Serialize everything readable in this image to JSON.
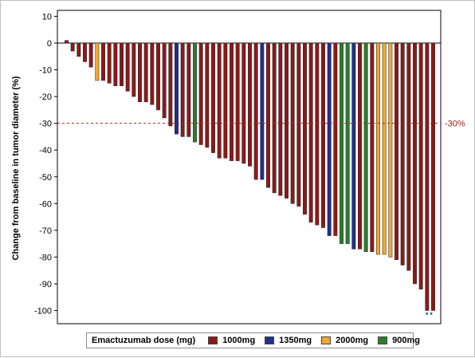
{
  "chart_data": {
    "type": "bar",
    "title": "",
    "xlabel": "",
    "ylabel": "Change from baseline in tumor diameter (%)",
    "ylim": [
      -105,
      12
    ],
    "yticks": [
      10,
      0,
      -10,
      -20,
      -30,
      -40,
      -50,
      -60,
      -70,
      -80,
      -90,
      -100
    ],
    "grid": false,
    "reference_line": {
      "y": -30,
      "label": "-30%",
      "style": "dashed",
      "color": "#b22222"
    },
    "legend": {
      "title": "Emactuzumab dose (mg)",
      "placement": "bottom",
      "entries": [
        {
          "name": "1000mg",
          "color": "#8b1a1a"
        },
        {
          "name": "1350mg",
          "color": "#1f2f8f"
        },
        {
          "name": "2000mg",
          "color": "#f0a830"
        },
        {
          "name": "900mg",
          "color": "#2e7d2e"
        }
      ]
    },
    "bar_annotation": "**",
    "values": [
      1,
      -3,
      -5,
      -7,
      -9,
      -14,
      -14,
      -15,
      -16,
      -16,
      -18,
      -20,
      -22,
      -22,
      -23,
      -25,
      -28,
      -31,
      -34,
      -35,
      -35,
      -37,
      -38,
      -39,
      -41,
      -43,
      -43,
      -44,
      -44,
      -45,
      -46,
      -51,
      -51,
      -54,
      -56,
      -57,
      -58,
      -60,
      -61,
      -64,
      -67,
      -68,
      -69,
      -72,
      -72,
      -75,
      -75,
      -77,
      -77,
      -78,
      -78,
      -79,
      -79,
      -80,
      -81,
      -83,
      -85,
      -90,
      -92,
      -100,
      -100
    ],
    "groups": [
      "1000mg",
      "1000mg",
      "1000mg",
      "1000mg",
      "1000mg",
      "2000mg",
      "1000mg",
      "1000mg",
      "1000mg",
      "1000mg",
      "1000mg",
      "1000mg",
      "1000mg",
      "1000mg",
      "1000mg",
      "1000mg",
      "1000mg",
      "1000mg",
      "1350mg",
      "1000mg",
      "1000mg",
      "900mg",
      "1000mg",
      "1000mg",
      "1000mg",
      "1000mg",
      "1000mg",
      "1000mg",
      "1000mg",
      "1000mg",
      "1000mg",
      "1000mg",
      "1350mg",
      "1000mg",
      "1000mg",
      "1000mg",
      "1000mg",
      "1000mg",
      "1000mg",
      "1000mg",
      "1000mg",
      "1000mg",
      "1000mg",
      "1350mg",
      "1000mg",
      "900mg",
      "900mg",
      "1350mg",
      "1000mg",
      "900mg",
      "1000mg",
      "2000mg",
      "2000mg",
      "2000mg",
      "1000mg",
      "1000mg",
      "1000mg",
      "1000mg",
      "1000mg",
      "1000mg",
      "1000mg"
    ]
  }
}
